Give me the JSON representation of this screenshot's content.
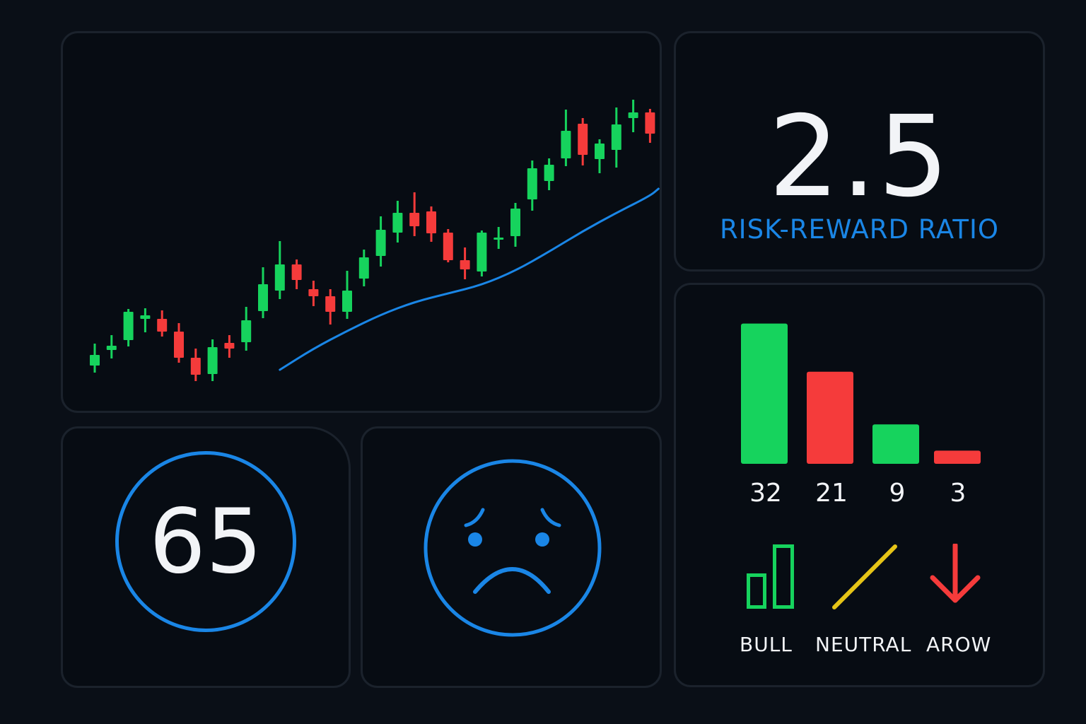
{
  "colors": {
    "bullish": "#16d35d",
    "bearish": "#f53b3b",
    "accent": "#1a86e6",
    "neutral": "#e6c417",
    "text": "#f2f4f7"
  },
  "price_chart": {
    "candles": [
      {
        "o": 22,
        "c": 37,
        "h": 53,
        "l": 12
      },
      {
        "o": 44,
        "c": 50,
        "h": 65,
        "l": 32
      },
      {
        "o": 58,
        "c": 98,
        "h": 102,
        "l": 49
      },
      {
        "o": 88,
        "c": 93,
        "h": 103,
        "l": 69
      },
      {
        "o": 88,
        "c": 70,
        "h": 100,
        "l": 63
      },
      {
        "o": 70,
        "c": 33,
        "h": 82,
        "l": 26
      },
      {
        "o": 33,
        "c": 9,
        "h": 46,
        "l": 0
      },
      {
        "o": 10,
        "c": 48,
        "h": 59,
        "l": 0
      },
      {
        "o": 54,
        "c": 46,
        "h": 65,
        "l": 33
      },
      {
        "o": 55,
        "c": 86,
        "h": 105,
        "l": 43
      },
      {
        "o": 99,
        "c": 137,
        "h": 161,
        "l": 89
      },
      {
        "o": 128,
        "c": 165,
        "h": 198,
        "l": 116
      },
      {
        "o": 165,
        "c": 143,
        "h": 172,
        "l": 130
      },
      {
        "o": 130,
        "c": 120,
        "h": 142,
        "l": 106
      },
      {
        "o": 120,
        "c": 98,
        "h": 130,
        "l": 80
      },
      {
        "o": 98,
        "c": 128,
        "h": 156,
        "l": 88
      },
      {
        "o": 145,
        "c": 175,
        "h": 186,
        "l": 134
      },
      {
        "o": 177,
        "c": 214,
        "h": 233,
        "l": 162
      },
      {
        "o": 210,
        "c": 238,
        "h": 255,
        "l": 196
      },
      {
        "o": 238,
        "c": 219,
        "h": 267,
        "l": 205
      },
      {
        "o": 240,
        "c": 209,
        "h": 247,
        "l": 197
      },
      {
        "o": 210,
        "c": 171,
        "h": 215,
        "l": 168
      },
      {
        "o": 171,
        "c": 158,
        "h": 189,
        "l": 144
      },
      {
        "o": 155,
        "c": 210,
        "h": 213,
        "l": 148
      },
      {
        "o": 200,
        "c": 203,
        "h": 218,
        "l": 187
      },
      {
        "o": 205,
        "c": 244,
        "h": 252,
        "l": 190
      },
      {
        "o": 257,
        "c": 301,
        "h": 312,
        "l": 241
      },
      {
        "o": 283,
        "c": 306,
        "h": 315,
        "l": 270
      },
      {
        "o": 315,
        "c": 354,
        "h": 384,
        "l": 304
      },
      {
        "o": 364,
        "c": 320,
        "h": 372,
        "l": 305
      },
      {
        "o": 314,
        "c": 336,
        "h": 342,
        "l": 294
      },
      {
        "o": 327,
        "c": 363,
        "h": 387,
        "l": 302
      },
      {
        "o": 372,
        "c": 380,
        "h": 398,
        "l": 352
      },
      {
        "o": 380,
        "c": 350,
        "h": 385,
        "l": 337
      }
    ],
    "moving_average": [
      {
        "i": 11,
        "v": 16
      },
      {
        "i": 13,
        "v": 46
      },
      {
        "i": 15,
        "v": 71
      },
      {
        "i": 17,
        "v": 94
      },
      {
        "i": 19,
        "v": 112
      },
      {
        "i": 21,
        "v": 124
      },
      {
        "i": 23,
        "v": 136
      },
      {
        "i": 25,
        "v": 156
      },
      {
        "i": 27,
        "v": 183
      },
      {
        "i": 29,
        "v": 212
      },
      {
        "i": 31,
        "v": 238
      },
      {
        "i": 33,
        "v": 262
      },
      {
        "i": 33.5,
        "v": 272
      }
    ]
  },
  "ratio": {
    "value": "2.5",
    "label": "RISK-REWARD RATIO"
  },
  "bar_stats": {
    "chart_data": {
      "type": "bar",
      "values": [
        32,
        21,
        9,
        3
      ],
      "labels": [
        "32",
        "21",
        "9",
        "3"
      ],
      "bar_colors": [
        "#16d35d",
        "#f53b3b",
        "#16d35d",
        "#f53b3b"
      ]
    },
    "legend": [
      {
        "icon": "bull-bars-icon",
        "label": "BULL"
      },
      {
        "icon": "neutral-line-icon",
        "label": "NEUTRAL"
      },
      {
        "icon": "down-arrow-icon",
        "label": "AROW"
      }
    ]
  },
  "score": {
    "value": "65"
  },
  "mood": {
    "icon": "sad-face-icon"
  }
}
